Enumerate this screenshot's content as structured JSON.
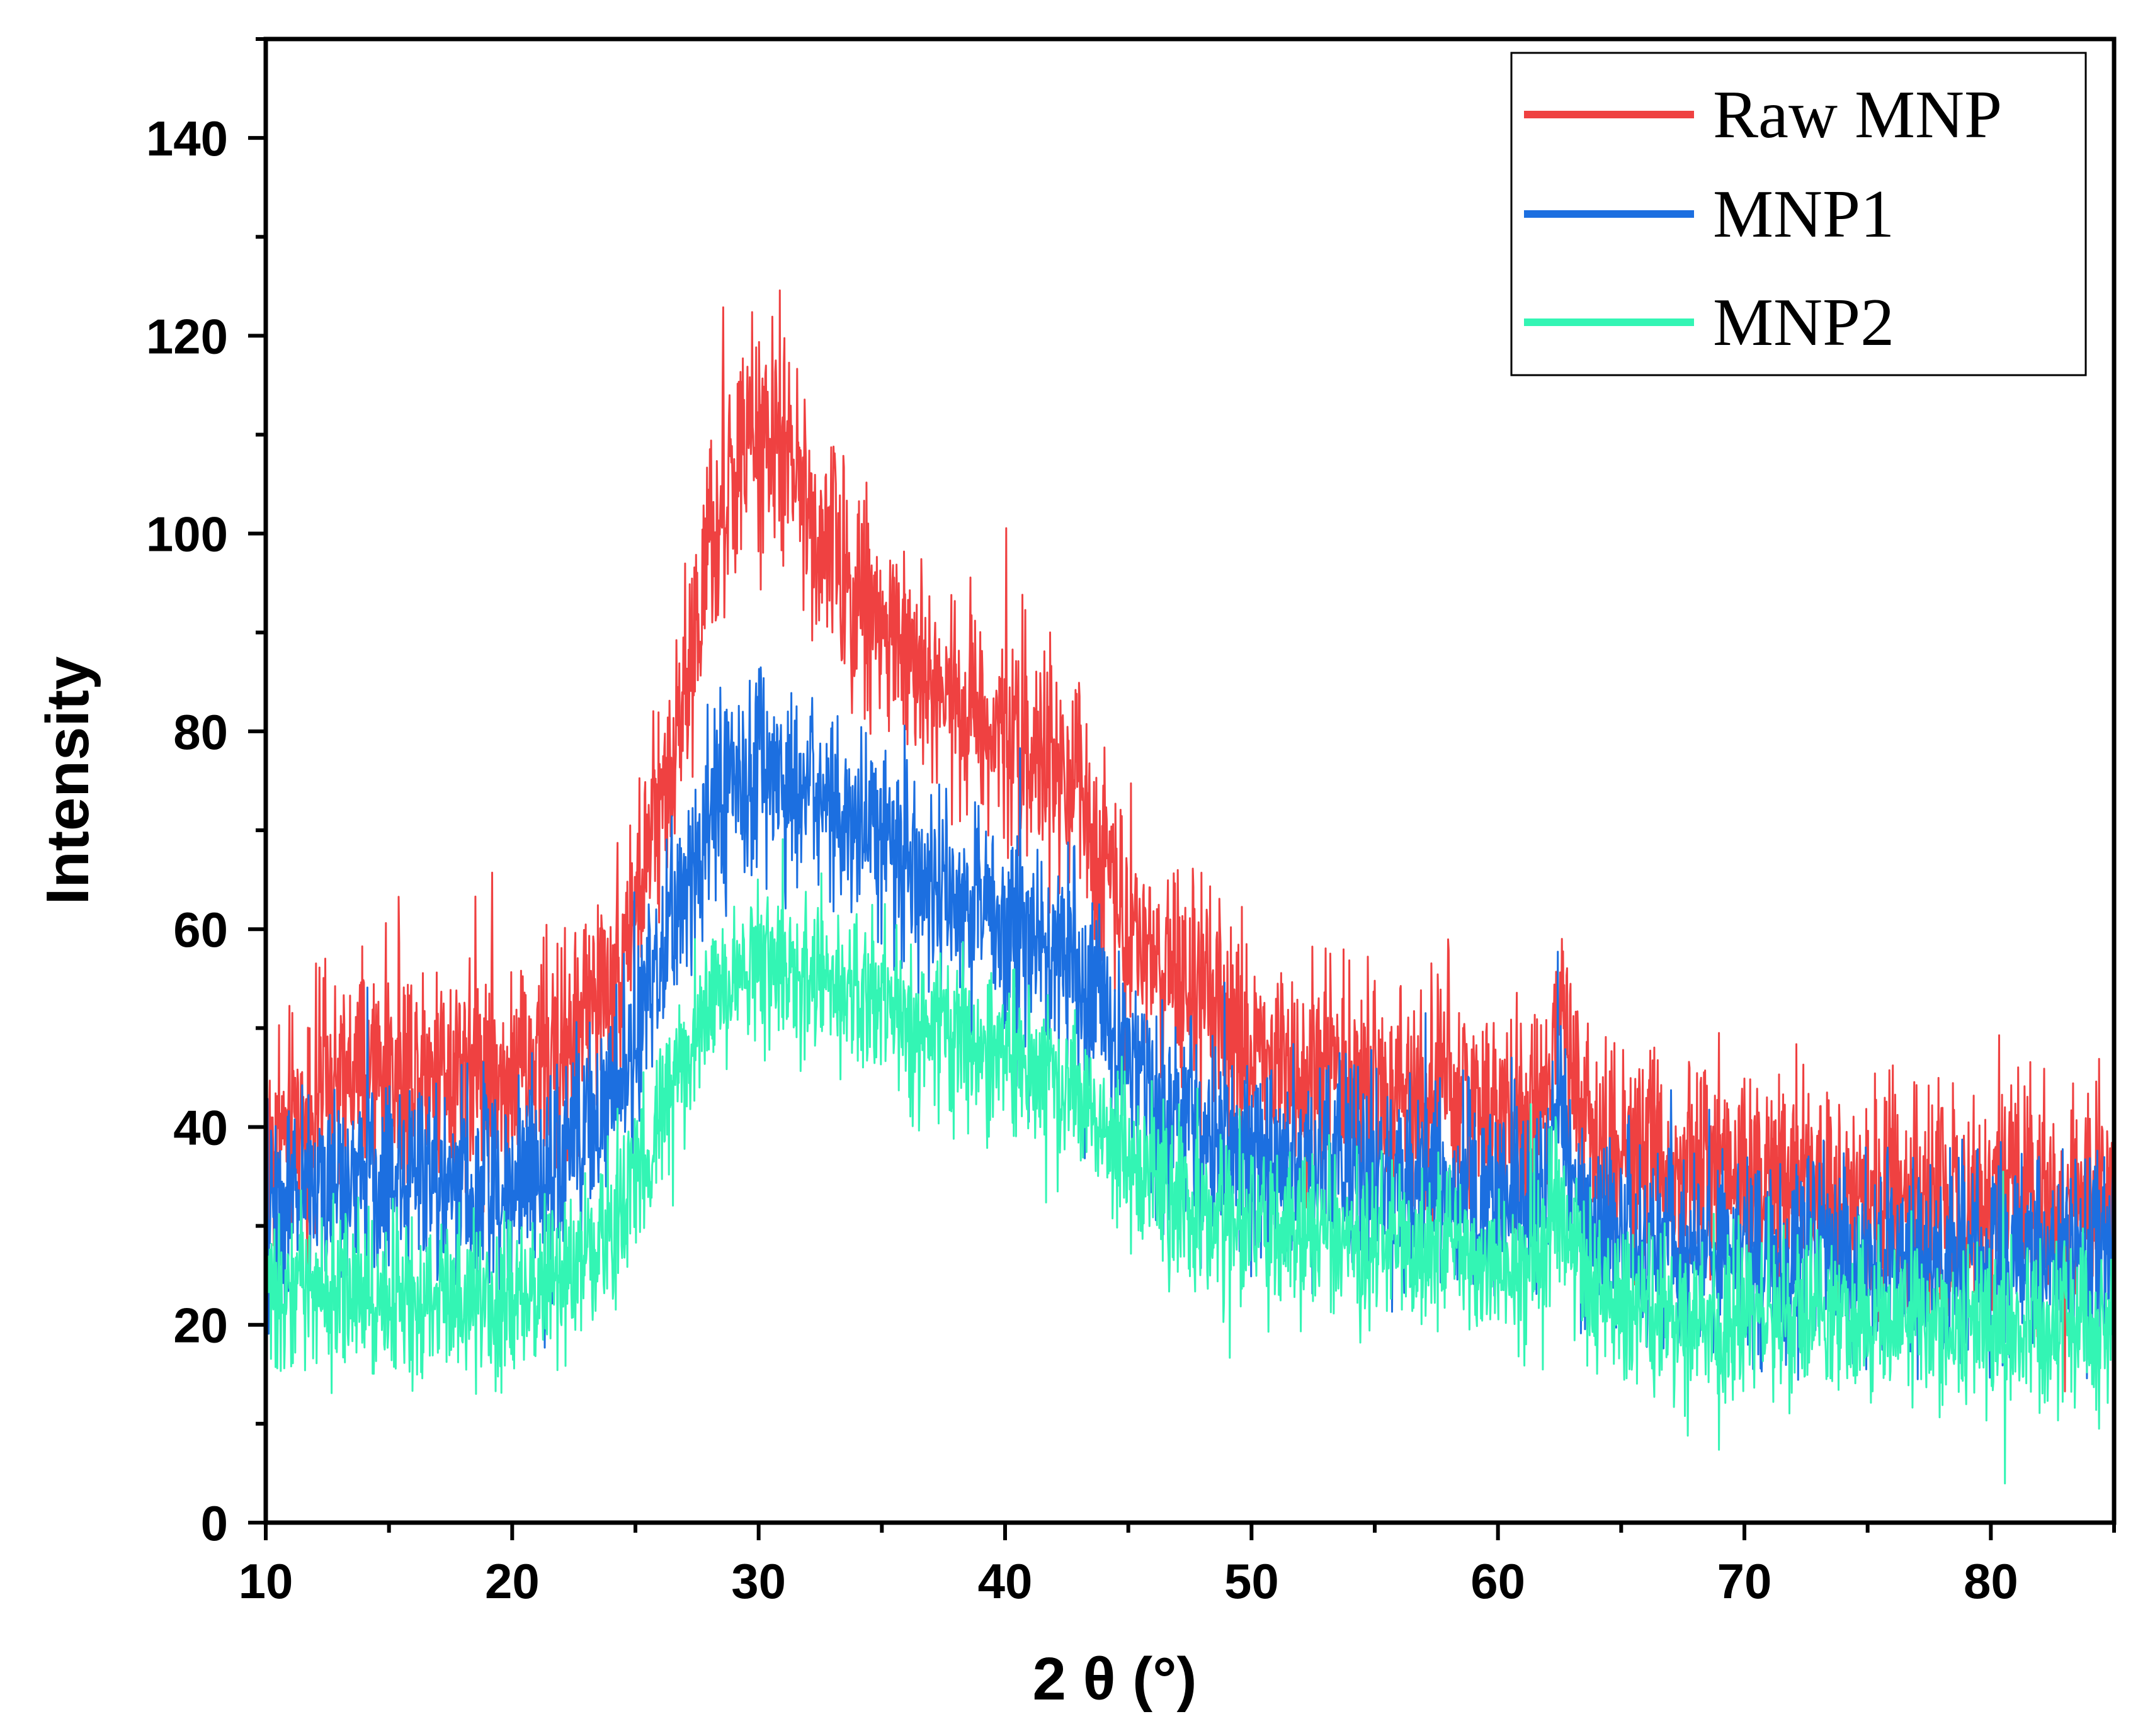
{
  "chart_data": {
    "type": "line",
    "title": "",
    "xlabel": "2 θ (°)",
    "ylabel": "Intensity",
    "xlim": [
      10,
      85
    ],
    "ylim": [
      0,
      150
    ],
    "xticks": [
      10,
      20,
      30,
      40,
      50,
      60,
      70,
      80
    ],
    "yticks": [
      0,
      20,
      40,
      60,
      80,
      100,
      120,
      140
    ],
    "legend_position": "top-right",
    "x_profile": [
      10,
      12,
      15,
      18,
      20,
      22,
      24,
      25,
      26,
      27,
      28,
      29,
      30,
      31,
      32,
      33,
      34,
      35,
      36,
      37,
      38,
      39,
      40,
      41,
      42,
      43,
      44,
      45,
      46,
      48,
      50,
      52,
      54,
      56,
      58,
      60,
      61,
      62,
      62.5,
      63,
      64,
      66,
      68,
      70,
      72,
      74,
      76,
      78,
      80,
      82,
      85
    ],
    "series": [
      {
        "name": "Raw MNP",
        "color": "#ef4141",
        "noise_amplitude": 5.5,
        "values": [
          37,
          43,
          46,
          47,
          45,
          48,
          55,
          62,
          72,
          85,
          97,
          106,
          110,
          108,
          103,
          98,
          94,
          91,
          88,
          85,
          84,
          82,
          80,
          78,
          76,
          73,
          68,
          62,
          57,
          52,
          48,
          46,
          45,
          44,
          43,
          41,
          40,
          42,
          52,
          43,
          39,
          37,
          36,
          35,
          34,
          34,
          34,
          33,
          33,
          33,
          33
        ]
      },
      {
        "name": "MNP1",
        "color": "#1c6fe0",
        "noise_amplitude": 5,
        "values": [
          32,
          34,
          35,
          35,
          34,
          37,
          43,
          49,
          56,
          64,
          71,
          75,
          76,
          75,
          73,
          72,
          70,
          69,
          66,
          64,
          63,
          62,
          61,
          60,
          58,
          55,
          51,
          47,
          43,
          39,
          37,
          36,
          36,
          35,
          35,
          33,
          32,
          34,
          45,
          34,
          30,
          28,
          28,
          27,
          27,
          27,
          27,
          27,
          27,
          27,
          27
        ]
      },
      {
        "name": "MNP2",
        "color": "#33f5b4",
        "noise_amplitude": 4,
        "values": [
          23,
          24,
          23,
          23,
          22,
          25,
          30,
          35,
          41,
          47,
          52,
          55,
          57,
          56,
          55,
          54,
          53,
          52,
          51,
          50,
          49,
          48,
          47,
          46,
          45,
          43,
          40,
          37,
          34,
          31,
          30,
          29,
          29,
          28,
          28,
          27,
          26,
          28,
          33,
          27,
          23,
          22,
          21,
          21,
          21,
          21,
          21,
          20,
          20,
          20,
          20
        ]
      }
    ]
  }
}
